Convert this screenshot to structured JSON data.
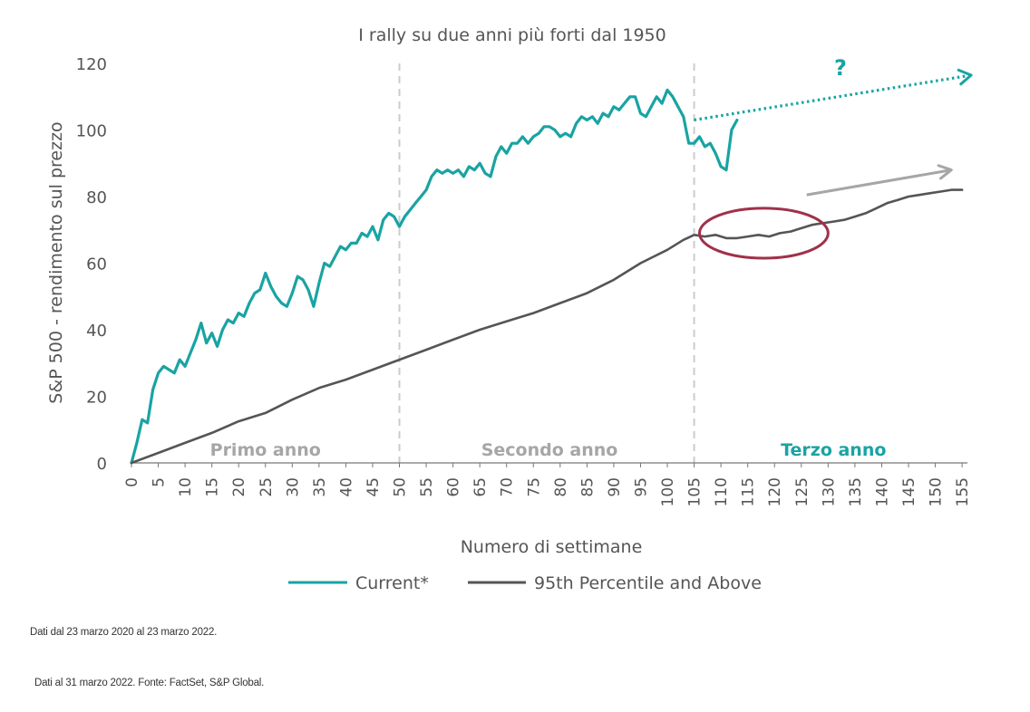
{
  "colors": {
    "current": "#1aa3a3",
    "percentile": "#555555",
    "grid_divider": "#cccccc",
    "axis": "#777777",
    "text": "#555555",
    "ellipse": "#a0314a",
    "gray_arrow": "#a6a6a6",
    "period_label": "#a6a6a6"
  },
  "chart_data": {
    "type": "line",
    "title": "I rally su due anni più forti dal 1950",
    "xlabel": "Numero di settimane",
    "ylabel": "S&P 500 - rendimento sul prezzo",
    "xlim": [
      0,
      156
    ],
    "ylim": [
      0,
      120
    ],
    "x_ticks": [
      0,
      5,
      10,
      15,
      20,
      25,
      30,
      35,
      40,
      45,
      50,
      55,
      60,
      65,
      70,
      75,
      80,
      85,
      90,
      95,
      100,
      105,
      110,
      115,
      120,
      125,
      130,
      135,
      140,
      145,
      150,
      155
    ],
    "y_ticks": [
      0,
      20,
      40,
      60,
      80,
      100,
      120
    ],
    "dividers": [
      50,
      105
    ],
    "period_labels": [
      {
        "text": "Primo anno",
        "x": 25,
        "highlight": false
      },
      {
        "text": "Secondo anno",
        "x": 78,
        "highlight": false
      },
      {
        "text": "Terzo anno",
        "x": 131,
        "highlight": true
      }
    ],
    "series": [
      {
        "name": "Current*",
        "color": "#1aa3a3",
        "points": [
          [
            0,
            0
          ],
          [
            1,
            6
          ],
          [
            2,
            13
          ],
          [
            3,
            12
          ],
          [
            4,
            22
          ],
          [
            5,
            27
          ],
          [
            6,
            29
          ],
          [
            7,
            28
          ],
          [
            8,
            27
          ],
          [
            9,
            31
          ],
          [
            10,
            29
          ],
          [
            11,
            33
          ],
          [
            12,
            37
          ],
          [
            13,
            42
          ],
          [
            14,
            36
          ],
          [
            15,
            39
          ],
          [
            16,
            35
          ],
          [
            17,
            40
          ],
          [
            18,
            43
          ],
          [
            19,
            42
          ],
          [
            20,
            45
          ],
          [
            21,
            44
          ],
          [
            22,
            48
          ],
          [
            23,
            51
          ],
          [
            24,
            52
          ],
          [
            25,
            57
          ],
          [
            26,
            53
          ],
          [
            27,
            50
          ],
          [
            28,
            48
          ],
          [
            29,
            47
          ],
          [
            30,
            51
          ],
          [
            31,
            56
          ],
          [
            32,
            55
          ],
          [
            33,
            52
          ],
          [
            34,
            47
          ],
          [
            35,
            54
          ],
          [
            36,
            60
          ],
          [
            37,
            59
          ],
          [
            38,
            62
          ],
          [
            39,
            65
          ],
          [
            40,
            64
          ],
          [
            41,
            66
          ],
          [
            42,
            66
          ],
          [
            43,
            69
          ],
          [
            44,
            68
          ],
          [
            45,
            71
          ],
          [
            46,
            67
          ],
          [
            47,
            73
          ],
          [
            48,
            75
          ],
          [
            49,
            74
          ],
          [
            50,
            71
          ],
          [
            51,
            74
          ],
          [
            52,
            76
          ],
          [
            53,
            78
          ],
          [
            54,
            80
          ],
          [
            55,
            82
          ],
          [
            56,
            86
          ],
          [
            57,
            88
          ],
          [
            58,
            87
          ],
          [
            59,
            88
          ],
          [
            60,
            87
          ],
          [
            61,
            88
          ],
          [
            62,
            86
          ],
          [
            63,
            89
          ],
          [
            64,
            88
          ],
          [
            65,
            90
          ],
          [
            66,
            87
          ],
          [
            67,
            86
          ],
          [
            68,
            92
          ],
          [
            69,
            95
          ],
          [
            70,
            93
          ],
          [
            71,
            96
          ],
          [
            72,
            96
          ],
          [
            73,
            98
          ],
          [
            74,
            96
          ],
          [
            75,
            98
          ],
          [
            76,
            99
          ],
          [
            77,
            101
          ],
          [
            78,
            101
          ],
          [
            79,
            100
          ],
          [
            80,
            98
          ],
          [
            81,
            99
          ],
          [
            82,
            98
          ],
          [
            83,
            102
          ],
          [
            84,
            104
          ],
          [
            85,
            103
          ],
          [
            86,
            104
          ],
          [
            87,
            102
          ],
          [
            88,
            105
          ],
          [
            89,
            104
          ],
          [
            90,
            107
          ],
          [
            91,
            106
          ],
          [
            92,
            108
          ],
          [
            93,
            110
          ],
          [
            94,
            110
          ],
          [
            95,
            105
          ],
          [
            96,
            104
          ],
          [
            97,
            107
          ],
          [
            98,
            110
          ],
          [
            99,
            108
          ],
          [
            100,
            112
          ],
          [
            101,
            110
          ],
          [
            102,
            107
          ],
          [
            103,
            104
          ],
          [
            104,
            96
          ],
          [
            105,
            96
          ],
          [
            106,
            98
          ],
          [
            107,
            95
          ],
          [
            108,
            96
          ],
          [
            109,
            93
          ],
          [
            110,
            89
          ],
          [
            111,
            88
          ],
          [
            112,
            100
          ],
          [
            113,
            103
          ]
        ]
      },
      {
        "name": "95th Percentile and Above",
        "color": "#555555",
        "points": [
          [
            0,
            0
          ],
          [
            5,
            3
          ],
          [
            10,
            6
          ],
          [
            15,
            9
          ],
          [
            20,
            12.5
          ],
          [
            25,
            15
          ],
          [
            30,
            19
          ],
          [
            35,
            22.5
          ],
          [
            40,
            25
          ],
          [
            45,
            28
          ],
          [
            50,
            31
          ],
          [
            55,
            34
          ],
          [
            60,
            37
          ],
          [
            65,
            40
          ],
          [
            70,
            42.5
          ],
          [
            75,
            45
          ],
          [
            80,
            48
          ],
          [
            85,
            51
          ],
          [
            90,
            55
          ],
          [
            95,
            60
          ],
          [
            100,
            64
          ],
          [
            103,
            67
          ],
          [
            105,
            68.5
          ],
          [
            107,
            68
          ],
          [
            109,
            68.5
          ],
          [
            111,
            67.5
          ],
          [
            113,
            67.5
          ],
          [
            115,
            68
          ],
          [
            117,
            68.5
          ],
          [
            119,
            68
          ],
          [
            121,
            69
          ],
          [
            123,
            69.5
          ],
          [
            125,
            70.5
          ],
          [
            127,
            71.5
          ],
          [
            129,
            72
          ],
          [
            131,
            72.5
          ],
          [
            133,
            73
          ],
          [
            135,
            74
          ],
          [
            137,
            75
          ],
          [
            139,
            76.5
          ],
          [
            141,
            78
          ],
          [
            143,
            79
          ],
          [
            145,
            80
          ],
          [
            147,
            80.5
          ],
          [
            149,
            81
          ],
          [
            151,
            81.5
          ],
          [
            153,
            82
          ],
          [
            155,
            82
          ]
        ]
      }
    ],
    "annotations": {
      "question_mark": "?",
      "projection_current": {
        "from": [
          105,
          103
        ],
        "to": [
          155,
          117
        ]
      },
      "projection_percentile": {
        "from": [
          126,
          80.5
        ],
        "to": [
          153,
          88
        ]
      },
      "ellipse": {
        "cx": 118,
        "cy": 69,
        "rx": 12,
        "ry": 7.5
      }
    },
    "legend": {
      "placement": "bottom-center"
    }
  },
  "footnotes": [
    "Dati dal 23 marzo 2020 al 23 marzo 2022.",
    "Dati al 31 marzo 2022. Fonte: FactSet, S&P Global."
  ]
}
